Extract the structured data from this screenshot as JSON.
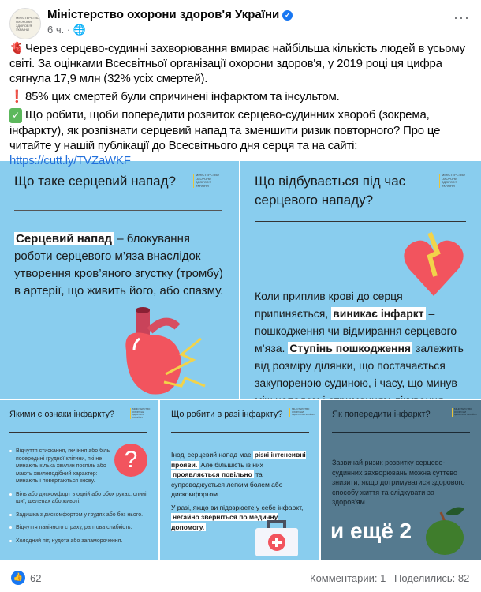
{
  "header": {
    "page_name": "Міністерство охорони здоров'я України",
    "time": "6 ч.",
    "avatar_text": "МІНІСТЕРСТВО ОХОРОНИ ЗДОРОВ'Я УКРАЇНИ"
  },
  "post": {
    "p1": "Через серцево-судинні захворювання вмирає найбільша кількість людей в усьому світі. За оцінками Всесвітньої організації охорони здоров'я, у 2019 році ця цифра сягнула 17,9 млн (32% усіх смертей).",
    "p2": "85% цих смертей були спричинені інфарктом та інсультом.",
    "p3": "Що робити, щоби попередити розвиток серцево-судинних хвороб (зокрема, інфаркту), як розпізнати серцевий напад та зменшити ризик повторного? Про це читайте у нашій публікації до Всесвітнього дня серця та на сайті: ",
    "link": "https://cutt.ly/TVZaWKF"
  },
  "tiles": {
    "t1": {
      "title": "Що таке серцевий напад?",
      "hl": "Серцевий напад",
      "rest": " – блокування роботи серцевого м’яза внаслідок утворення кров’яного згустку (тромбу) в артерії, що живить його, або спазму."
    },
    "t2": {
      "title": "Що відбувається під час серцевого нападу?",
      "a": "Коли приплив крові до серця припиняється, ",
      "hl1": "виникає інфаркт",
      "b": " – пошкодження чи відмирання серцевого м’яза. ",
      "hl2": "Ступінь пошкодження",
      "c": " залежить від розміру ділянки, що постачається закупореною судиною, і часу, що минув між нападом і отриманням лікування."
    },
    "t3": {
      "title": "Якими є ознаки інфаркту?",
      "items": [
        "Відчуття стискання, печіння або біль посередині грудної клітини, які не минають кілька хвилин поспіль або мають хвилеподібний характер: минають і повертаються знову.",
        "Біль або дискомфорт в одній або обох руках, спині, шиї, щелепах або животі.",
        "Задишка з дискомфортом у грудях або без нього.",
        "Відчуття панічного страху, раптова слабкість.",
        "Холодний піт, нудота або запаморочення."
      ]
    },
    "t4": {
      "title": "Що робити в разі інфаркту?",
      "a": "Іноді серцевий напад має ",
      "hl1": "різкі інтенсивні прояви.",
      "b": " Але більшість із них ",
      "hl2": "проявляється повільно",
      "c": " та супроводжується легким болем або дискомфортом.",
      "d": "У разі, якщо ви підозрюєте у себе інфаркт, ",
      "hl3": "негайно зверніться по медичну допомогу."
    },
    "t5": {
      "title": "Як попередити інфаркт?",
      "text": "Зазвичай ризик розвитку серцево-судинних захворювань можна суттєво знизити, якщо дотримуватися здорового способу життя та слідкувати за здоров'ям.",
      "overlay": "и ещё 2"
    },
    "logo": "МІНІСТЕРСТВО ОХОРОНИ ЗДОРОВ'Я УКРАЇНИ"
  },
  "footer": {
    "reactions": "62",
    "comments": "Комментарии: 1",
    "shares": "Поделились: 82"
  },
  "colors": {
    "tile_light": "#89cdee",
    "tile_dark": "#557a8f",
    "accent_red": "#f2545e",
    "link": "#216fdb"
  }
}
